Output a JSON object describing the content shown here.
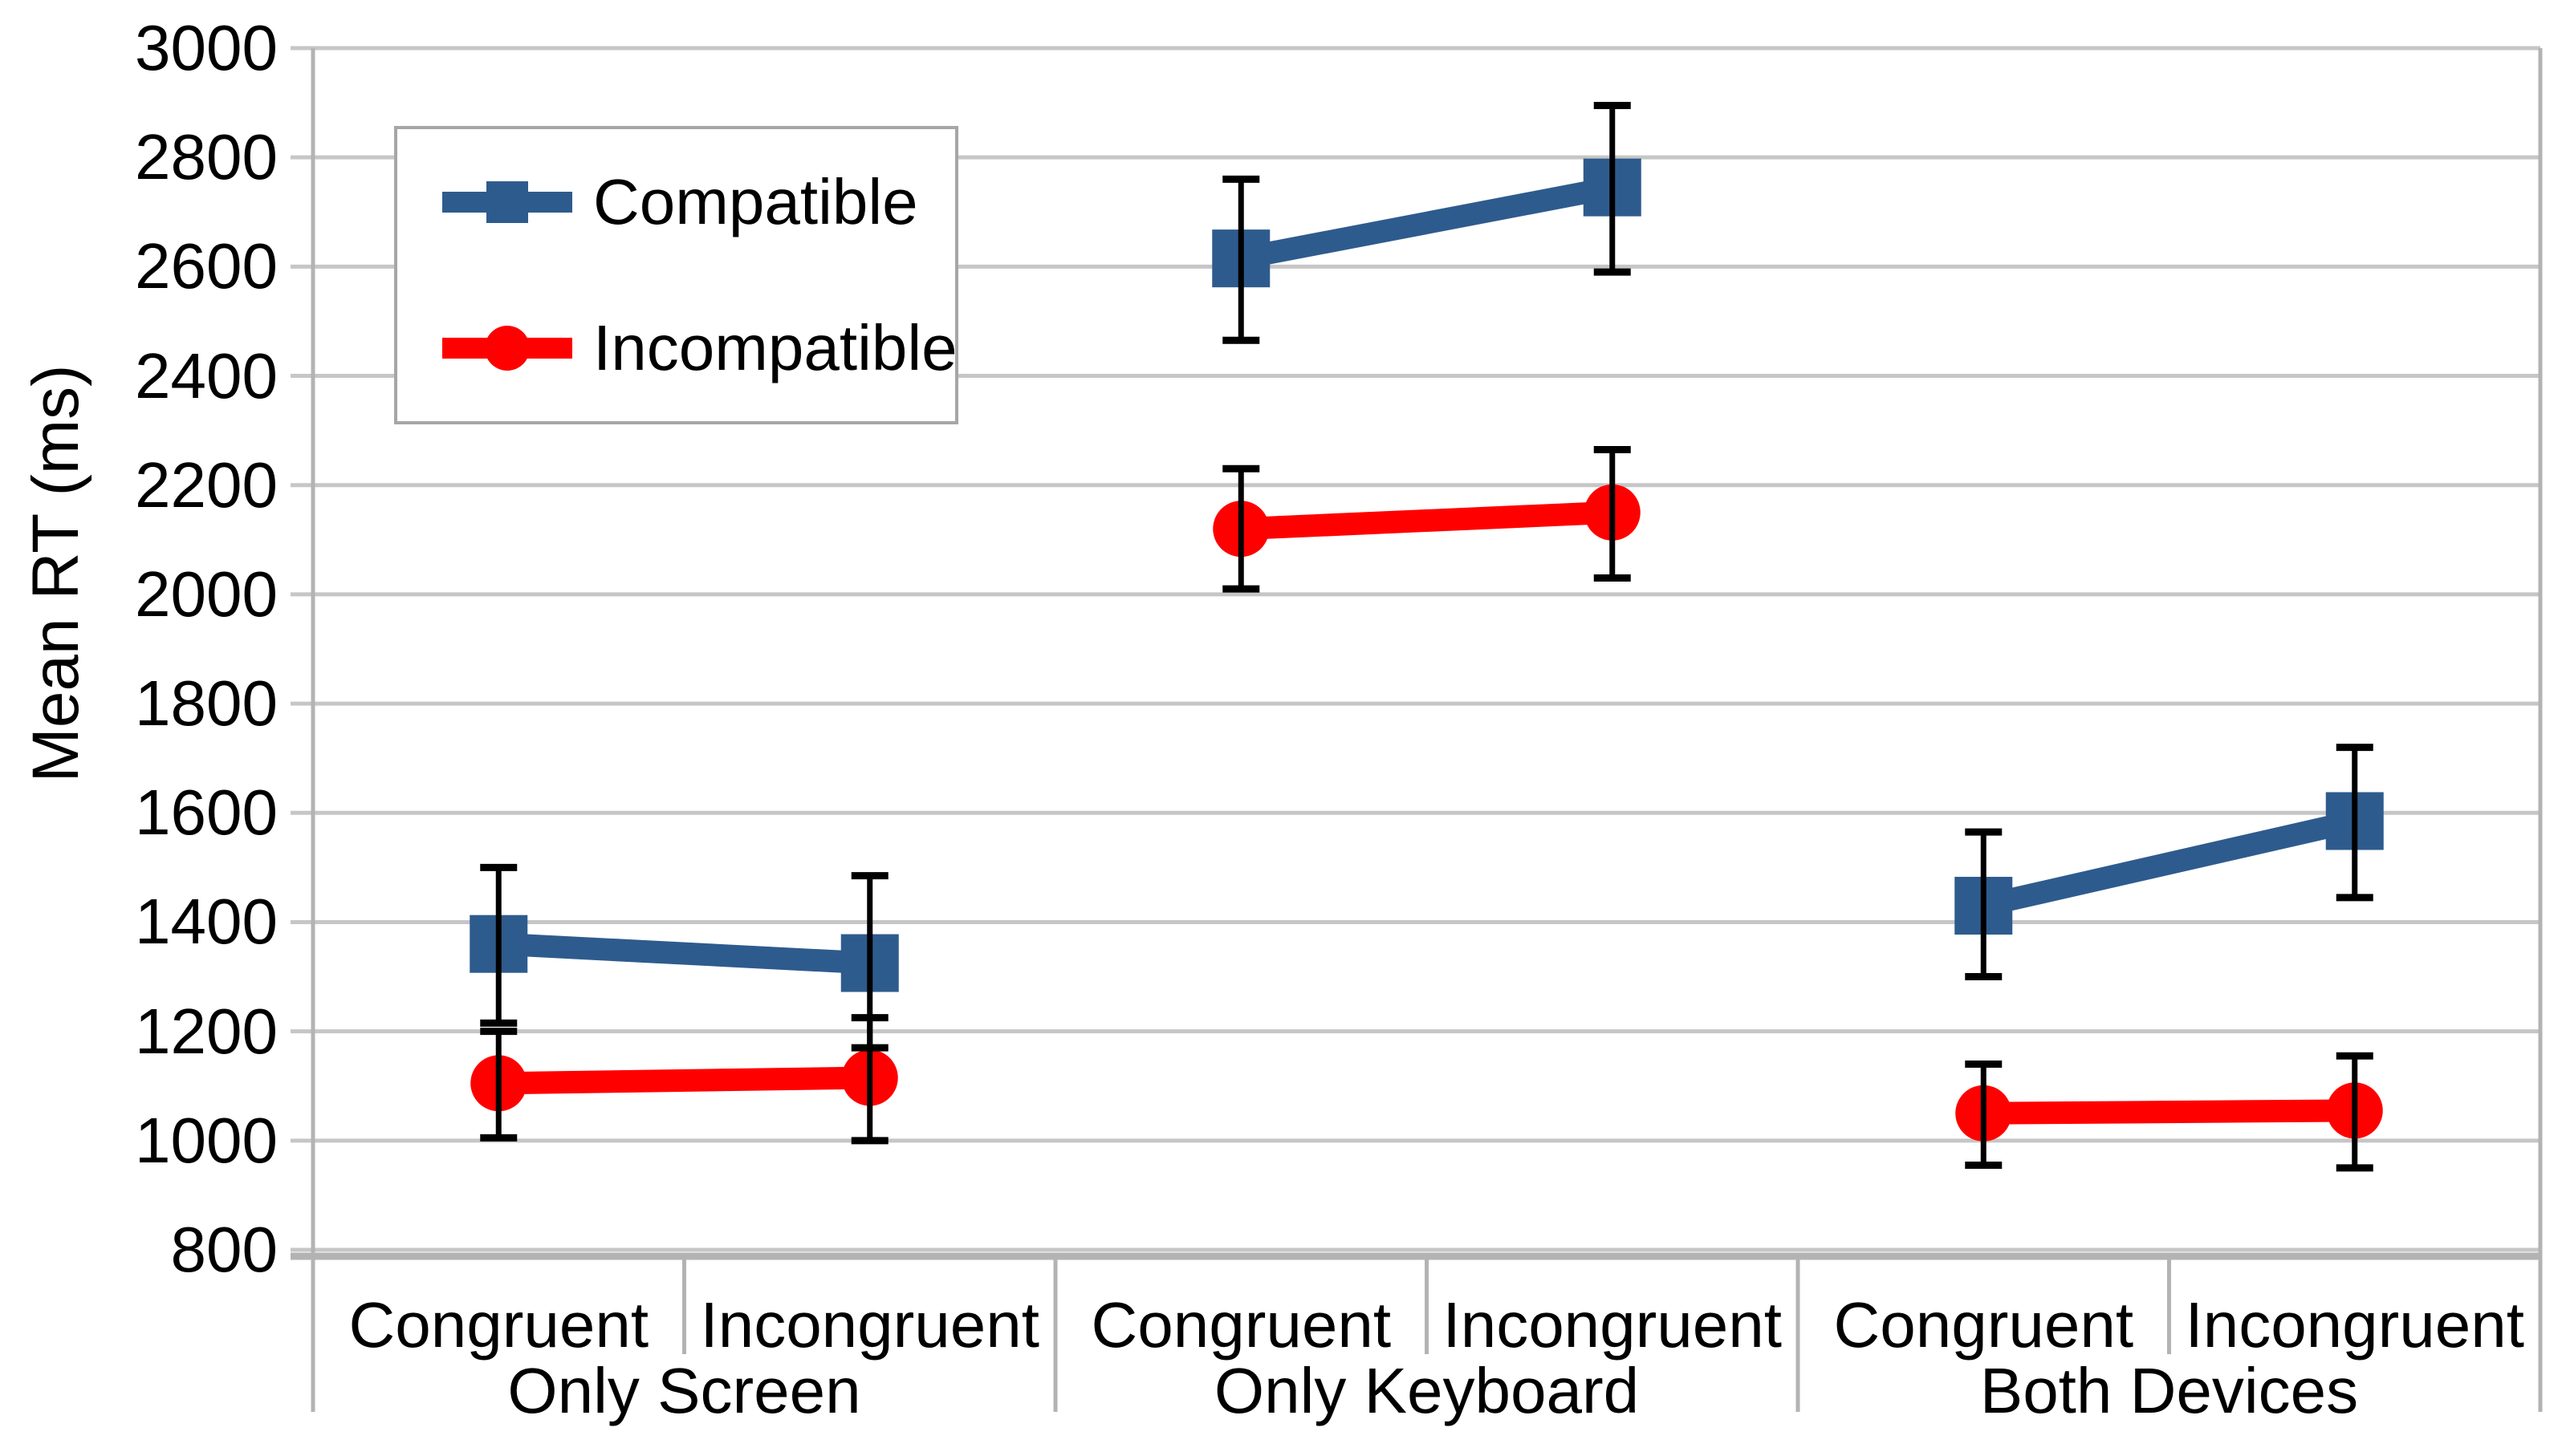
{
  "colors": {
    "background": "#FFFFFF",
    "gridline": "#C6C6C6",
    "axis_line": "#B3B3B3",
    "error_bar": "#000000",
    "legend_border": "#A6A6A6",
    "compatible_blue": "#2E5B8D",
    "incompatible_red": "#FF0000"
  },
  "axis": {
    "y_title": "Mean RT (ms)",
    "y_tick_labels": [
      "3000",
      "2800",
      "2600",
      "2400",
      "2200",
      "2000",
      "1800",
      "1600",
      "1400",
      "1200",
      "1000",
      "800"
    ],
    "category_labels": [
      "Congruent",
      "Incongruent",
      "Congruent",
      "Incongruent",
      "Congruent",
      "Incongruent"
    ],
    "group_labels": [
      "Only Screen",
      "Only Keyboard",
      "Both Devices"
    ]
  },
  "legend": {
    "items": [
      {
        "label": "Compatible",
        "color": "#2E5B8D",
        "marker": "square"
      },
      {
        "label": "Incompatible",
        "color": "#FF0000",
        "marker": "circle"
      }
    ]
  },
  "chart_data": {
    "type": "line",
    "title": "",
    "xlabel": "",
    "ylabel": "Mean RT (ms)",
    "ylim": [
      800,
      3000
    ],
    "ytick_step": 200,
    "grid": "horizontal-gridlines-on",
    "legend_position": "inside-top-left",
    "error_bars": "shown-on-all-points",
    "groups": [
      "Only Screen",
      "Only Keyboard",
      "Both Devices"
    ],
    "categories": [
      "Congruent",
      "Incongruent"
    ],
    "series": [
      {
        "name": "Compatible",
        "color": "#2E5B8D",
        "marker": "square",
        "points": [
          {
            "group": "Only Screen",
            "condition": "Congruent",
            "mean": 1360,
            "ci_low": 1215,
            "ci_high": 1500
          },
          {
            "group": "Only Screen",
            "condition": "Incongruent",
            "mean": 1325,
            "ci_low": 1170,
            "ci_high": 1485
          },
          {
            "group": "Only Keyboard",
            "condition": "Congruent",
            "mean": 2615,
            "ci_low": 2465,
            "ci_high": 2760
          },
          {
            "group": "Only Keyboard",
            "condition": "Incongruent",
            "mean": 2745,
            "ci_low": 2590,
            "ci_high": 2895
          },
          {
            "group": "Both Devices",
            "condition": "Congruent",
            "mean": 1430,
            "ci_low": 1300,
            "ci_high": 1565
          },
          {
            "group": "Both Devices",
            "condition": "Incongruent",
            "mean": 1585,
            "ci_low": 1445,
            "ci_high": 1720
          }
        ]
      },
      {
        "name": "Incompatible",
        "color": "#FF0000",
        "marker": "circle",
        "points": [
          {
            "group": "Only Screen",
            "condition": "Congruent",
            "mean": 1105,
            "ci_low": 1005,
            "ci_high": 1200
          },
          {
            "group": "Only Screen",
            "condition": "Incongruent",
            "mean": 1115,
            "ci_low": 1000,
            "ci_high": 1225
          },
          {
            "group": "Only Keyboard",
            "condition": "Congruent",
            "mean": 2120,
            "ci_low": 2010,
            "ci_high": 2230
          },
          {
            "group": "Only Keyboard",
            "condition": "Incongruent",
            "mean": 2150,
            "ci_low": 2030,
            "ci_high": 2265
          },
          {
            "group": "Both Devices",
            "condition": "Congruent",
            "mean": 1050,
            "ci_low": 955,
            "ci_high": 1140
          },
          {
            "group": "Both Devices",
            "condition": "Incongruent",
            "mean": 1055,
            "ci_low": 950,
            "ci_high": 1155
          }
        ]
      }
    ]
  }
}
